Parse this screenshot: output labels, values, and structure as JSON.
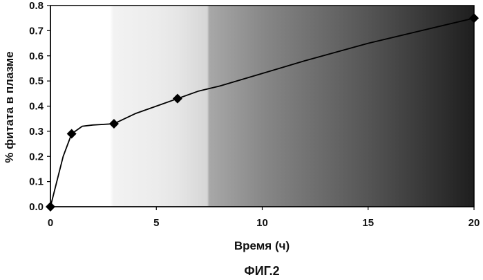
{
  "chart_data": {
    "type": "line",
    "xlabel": "Время (ч)",
    "ylabel": "% фитата в плазме",
    "xlim": [
      0,
      20
    ],
    "ylim": [
      0,
      0.8
    ],
    "x_ticks": [
      "0",
      "5",
      "10",
      "15",
      "20"
    ],
    "y_ticks": [
      "0.0",
      "0.1",
      "0.2",
      "0.3",
      "0.4",
      "0.5",
      "0.6",
      "0.7",
      "0.8"
    ],
    "grid": false,
    "background": "gradient",
    "series": [
      {
        "marker": "diamond",
        "color": "#000000",
        "points": [
          {
            "x": 0,
            "y": 0.0
          },
          {
            "x": 1,
            "y": 0.29
          },
          {
            "x": 3,
            "y": 0.33
          },
          {
            "x": 6,
            "y": 0.43
          },
          {
            "x": 20,
            "y": 0.75
          }
        ],
        "curve": [
          [
            0,
            0.0
          ],
          [
            0.3,
            0.1
          ],
          [
            0.6,
            0.2
          ],
          [
            1,
            0.29
          ],
          [
            1.5,
            0.32
          ],
          [
            2,
            0.325
          ],
          [
            3,
            0.33
          ],
          [
            3.5,
            0.35
          ],
          [
            4,
            0.37
          ],
          [
            5,
            0.4
          ],
          [
            6,
            0.43
          ],
          [
            7,
            0.46
          ],
          [
            8,
            0.48
          ],
          [
            10,
            0.53
          ],
          [
            12,
            0.58
          ],
          [
            15,
            0.65
          ],
          [
            18,
            0.71
          ],
          [
            20,
            0.75
          ]
        ]
      }
    ]
  },
  "caption": "ФИГ.2"
}
